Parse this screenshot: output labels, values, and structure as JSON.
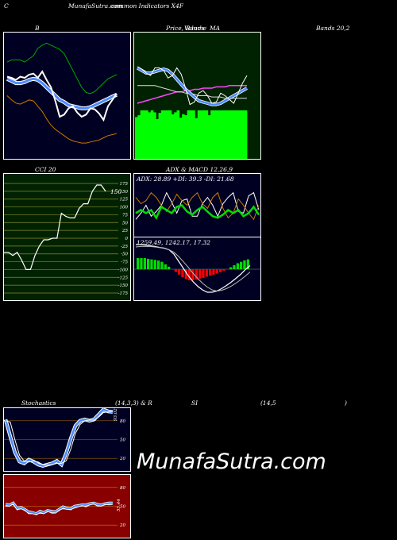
{
  "header": {
    "left": "C",
    "title": "MunafaSutra.com",
    "title_overlap": "common Indicators X4F",
    "col1": "B",
    "col2a": "Price,",
    "col2b": "Volume",
    "col2c": "MA",
    "col2_overlap": "Bands",
    "col3": "Bands 20,2"
  },
  "labels": {
    "cci": "CCI 20",
    "adx_macd": "ADX  & MACD 12,26,9",
    "adx_readout": "ADX: 28.89 +DI: 39.3 -DI: 21.68",
    "macd_readout": "1259.49,  1242.17,  17.32",
    "stoch": "Stochastics",
    "stoch_params": "(14,3,3) & R",
    "si": "SI",
    "si_params": "(14,5",
    "si_close": ")",
    "stoch_value": "93.02",
    "rsi_value": "55.44"
  },
  "watermark": "MunafaSutra.com",
  "colors": {
    "bollinger_bg": "#000022",
    "price_bg": "#002200",
    "cci_bg": "#002200",
    "adx_bg": "#000022",
    "stoch_bg": "#000022",
    "rsi_bg": "#880000",
    "volume": "#00ff00",
    "blue": "#4b8bff",
    "upper_band": "#00aa00",
    "lower_band": "#cc7700",
    "adx_green": "#00dd00",
    "macd_red": "#ff0000"
  },
  "chart_data": [
    {
      "type": "line",
      "title": "B",
      "series": [
        {
          "values": [
            58,
            57,
            55,
            58,
            57,
            60,
            61,
            57,
            63,
            55,
            48,
            35,
            20,
            22,
            28,
            30,
            24,
            20,
            22,
            28,
            27,
            23,
            17,
            30,
            36,
            42
          ]
        },
        {
          "values": [
            56,
            54,
            52,
            52,
            53,
            55,
            56,
            55,
            52,
            48,
            44,
            40,
            36,
            34,
            31,
            30,
            29,
            28,
            28,
            29,
            31,
            33,
            35,
            37,
            39,
            41
          ]
        },
        {
          "values": [
            72,
            74,
            74,
            74,
            72,
            75,
            78,
            85,
            88,
            90,
            88,
            86,
            84,
            80,
            72,
            64,
            56,
            48,
            43,
            42,
            44,
            48,
            52,
            56,
            58,
            60
          ]
        },
        {
          "values": [
            40,
            36,
            33,
            32,
            34,
            36,
            35,
            30,
            25,
            18,
            12,
            8,
            5,
            2,
            -1,
            -3,
            -4,
            -5,
            -5,
            -4,
            -3,
            -2,
            0,
            2,
            3,
            4
          ]
        }
      ]
    },
    {
      "type": "bar",
      "title": "Price, Volume MA",
      "values": [
        86,
        90,
        100,
        100,
        100,
        96,
        100,
        96,
        82,
        95,
        100,
        100,
        100,
        100,
        92,
        96,
        100,
        85,
        92,
        90,
        100,
        100,
        100,
        84,
        100,
        100,
        100,
        100,
        90,
        100,
        100,
        100,
        100,
        100,
        100,
        100,
        100,
        100,
        100,
        100,
        100,
        100,
        100
      ],
      "series": [
        {
          "values": [
            73,
            71,
            68,
            66,
            72,
            72,
            70,
            64,
            66,
            72,
            67,
            56,
            43,
            45,
            52,
            54,
            50,
            44,
            45,
            52,
            50,
            47,
            44,
            52,
            60,
            66
          ]
        },
        {
          "values": [
            72,
            70,
            68,
            68,
            69,
            70,
            71,
            70,
            67,
            63,
            59,
            55,
            52,
            49,
            46,
            45,
            44,
            43,
            43,
            44,
            46,
            48,
            50,
            52,
            54,
            56
          ]
        },
        {
          "values": [
            58,
            58,
            58,
            58,
            58,
            57,
            56,
            55,
            54,
            53,
            53,
            52,
            52,
            51,
            50,
            50,
            50,
            49,
            49,
            49,
            48,
            48,
            48,
            48,
            48,
            48
          ]
        },
        {
          "values": [
            44,
            45,
            46,
            47,
            48,
            49,
            50,
            51,
            52,
            53,
            53,
            54,
            54,
            55,
            55,
            56,
            56,
            56,
            57,
            57,
            57,
            58,
            58,
            58,
            58,
            58
          ]
        }
      ]
    },
    {
      "type": "line",
      "title": "CCI 20",
      "yticks": [
        175,
        150,
        125,
        100,
        75,
        50,
        25,
        0,
        -25,
        -50,
        -75,
        -100,
        -125,
        -150,
        -175
      ],
      "values": [
        -45,
        -45,
        -55,
        -45,
        -70,
        -100,
        -100,
        -55,
        -25,
        -5,
        -5,
        0,
        0,
        80,
        70,
        65,
        65,
        95,
        110,
        110,
        150,
        170,
        170,
        150
      ],
      "last_value": "150"
    },
    {
      "type": "line",
      "title": "ADX",
      "series": [
        {
          "name": "ADX",
          "values": [
            30,
            34,
            30,
            34,
            24,
            38,
            34,
            30,
            38,
            40,
            32,
            28,
            34,
            38,
            32,
            26,
            24,
            28,
            34,
            30,
            34,
            26,
            30,
            38,
            28
          ]
        },
        {
          "name": "+DI",
          "values": [
            50,
            42,
            46,
            56,
            50,
            40,
            32,
            42,
            54,
            46,
            40,
            50,
            56,
            42,
            36,
            50,
            56,
            36,
            24,
            30,
            48,
            40,
            30,
            22,
            40
          ]
        },
        {
          "name": "-DI",
          "values": [
            22,
            30,
            40,
            26,
            32,
            40,
            56,
            44,
            30,
            46,
            48,
            26,
            26,
            42,
            50,
            40,
            26,
            42,
            50,
            56,
            32,
            30,
            52,
            56,
            34
          ]
        }
      ]
    },
    {
      "type": "bar",
      "title": "MACD",
      "values": [
        45,
        45,
        45,
        42,
        40,
        38,
        35,
        30,
        20,
        10,
        0,
        -10,
        -22,
        -32,
        -40,
        -45,
        -45,
        -42,
        -38,
        -35,
        -30,
        -26,
        -22,
        -18,
        -12,
        -6,
        0,
        8,
        16,
        24,
        30,
        36,
        40
      ],
      "series": [
        {
          "values": [
            1.0,
            1.0,
            0.98,
            0.95,
            0.92,
            0.88,
            0.85,
            0.78,
            0.6,
            0.3,
            0.0,
            -0.3,
            -0.55,
            -0.75,
            -0.9,
            -1.0,
            -1.0,
            -0.95,
            -0.85,
            -0.72,
            -0.58,
            -0.42,
            -0.25,
            -0.05,
            0.12
          ]
        },
        {
          "values": [
            0.9,
            0.92,
            0.92,
            0.92,
            0.9,
            0.88,
            0.84,
            0.78,
            0.68,
            0.5,
            0.28,
            0.05,
            -0.2,
            -0.42,
            -0.62,
            -0.78,
            -0.9,
            -0.95,
            -0.92,
            -0.85,
            -0.75,
            -0.62,
            -0.48,
            -0.32,
            -0.15
          ]
        }
      ]
    },
    {
      "type": "line",
      "title": "Stochastics",
      "yticks": [
        80,
        50,
        20
      ],
      "series": [
        {
          "values": [
            82,
            55,
            30,
            15,
            12,
            18,
            15,
            10,
            8,
            10,
            12,
            16,
            10,
            28,
            52,
            72,
            80,
            82,
            80,
            82,
            90,
            98,
            95,
            94
          ]
        },
        {
          "values": [
            80,
            78,
            50,
            25,
            16,
            14,
            16,
            14,
            10,
            9,
            10,
            12,
            12,
            16,
            35,
            60,
            74,
            80,
            81,
            81,
            86,
            93,
            94,
            95
          ]
        }
      ],
      "last_value": "93.02"
    },
    {
      "type": "line",
      "title": "RSI",
      "yticks": [
        80,
        50,
        20
      ],
      "values": [
        53,
        52,
        55,
        47,
        48,
        45,
        41,
        40,
        38,
        42,
        40,
        43,
        42,
        41,
        45,
        49,
        47,
        46,
        50,
        51,
        52,
        52,
        54,
        55,
        53,
        52,
        54,
        55,
        55
      ],
      "last_value": "55.44"
    }
  ]
}
